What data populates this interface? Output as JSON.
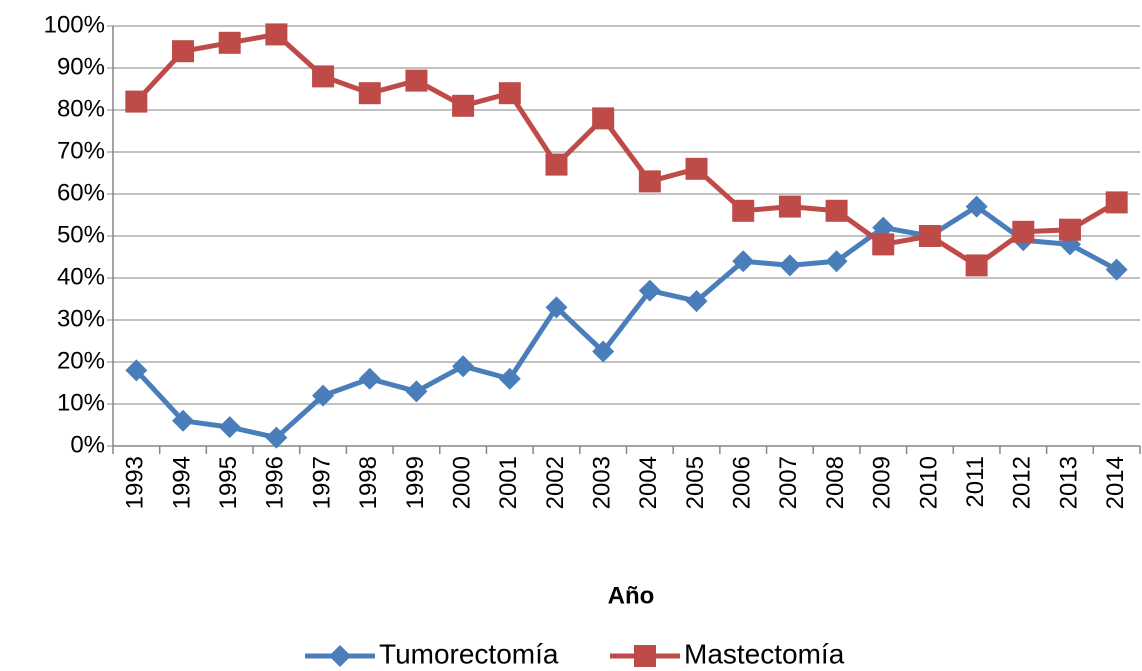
{
  "chart_data": {
    "type": "line",
    "x_label": "Año",
    "categories": [
      "1993",
      "1994",
      "1995",
      "1996",
      "1997",
      "1998",
      "1999",
      "2000",
      "2001",
      "2002",
      "2003",
      "2004",
      "2005",
      "2006",
      "2007",
      "2008",
      "2009",
      "2010",
      "2011",
      "2012",
      "2013",
      "2014"
    ],
    "series": [
      {
        "name": "Tumorectomía",
        "color": "#4a7ebb",
        "marker": "diamond",
        "values": [
          18,
          6,
          4.5,
          2,
          12,
          16,
          13,
          19,
          16,
          33,
          22.5,
          37,
          34.5,
          44,
          43,
          44,
          52,
          50,
          57,
          49,
          48,
          42
        ]
      },
      {
        "name": "Mastectomía",
        "color": "#be4b48",
        "marker": "square",
        "values": [
          82,
          94,
          96,
          98,
          88,
          84,
          87,
          81,
          84,
          67,
          78,
          63,
          66,
          56,
          57,
          56,
          48,
          50,
          43,
          51,
          51.5,
          58
        ]
      }
    ],
    "ylim": [
      0,
      100
    ],
    "yticks": [
      {
        "value": 0,
        "label": "0%"
      },
      {
        "value": 10,
        "label": "10%"
      },
      {
        "value": 20,
        "label": "20%"
      },
      {
        "value": 30,
        "label": "30%"
      },
      {
        "value": 40,
        "label": "40%"
      },
      {
        "value": 50,
        "label": "50%"
      },
      {
        "value": 60,
        "label": "60%"
      },
      {
        "value": 70,
        "label": "70%"
      },
      {
        "value": 80,
        "label": "80%"
      },
      {
        "value": 90,
        "label": "90%"
      },
      {
        "value": 100,
        "label": "100%"
      }
    ],
    "grid": true,
    "legend": "bottom"
  }
}
